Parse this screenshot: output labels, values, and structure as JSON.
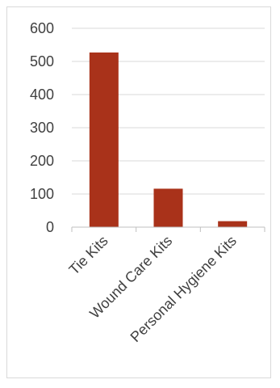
{
  "chart_data": {
    "type": "bar",
    "title": "",
    "xlabel": "",
    "ylabel": "",
    "categories": [
      "Tie Kits",
      "Wound Care Kits",
      "Personal Hygiene Kits"
    ],
    "values": [
      527,
      116,
      18
    ],
    "ylim": [
      0,
      600
    ],
    "yticks": [
      0,
      100,
      200,
      300,
      400,
      500,
      600
    ],
    "grid": true,
    "legend": "none",
    "bar_color": "#a9321a"
  }
}
